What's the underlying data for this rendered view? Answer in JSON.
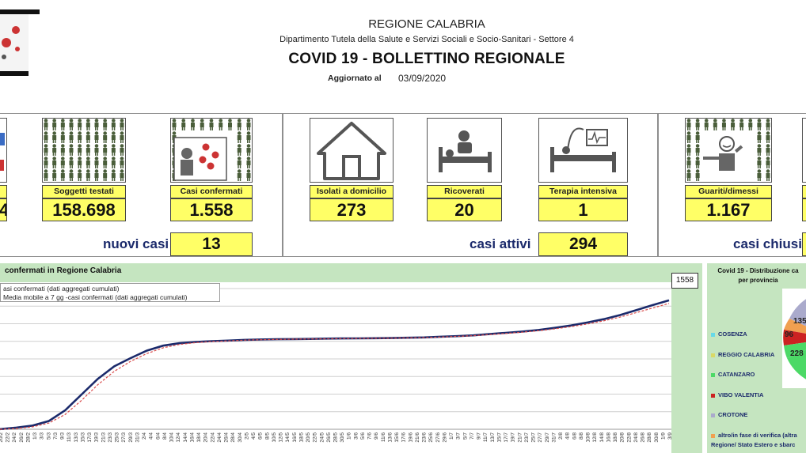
{
  "header": {
    "region": "REGIONE CALABRIA",
    "department": "Dipartimento Tutela della Salute e Servizi Sociali e Socio-Sanitari - Settore 4",
    "title": "COVID 19 - BOLLETTINO REGIONALE",
    "updated_label": "Aggiornato al",
    "updated_date": "03/09/2020"
  },
  "stats": {
    "partial_left_value": "4",
    "testati": {
      "label": "Soggetti testati",
      "value": "158.698"
    },
    "confermati": {
      "label": "Casi confermati",
      "value": "1.558"
    },
    "isolati": {
      "label": "Isolati a domicilio",
      "value": "273"
    },
    "ricoverati": {
      "label": "Ricoverati",
      "value": "20"
    },
    "terapia": {
      "label": "Terapia intensiva",
      "value": "1"
    },
    "guariti": {
      "label": "Guariti/dimessi",
      "value": "1.167"
    }
  },
  "summary": {
    "nuovi_label": "nuovi casi",
    "nuovi_value": "13",
    "attivi_label": "casi attivi",
    "attivi_value": "294",
    "chiusi_label": "casi chiusi"
  },
  "chart": {
    "title": "confermati in Regione Calabria",
    "legend": [
      "asi confermati (dati aggregati cumulati)",
      "Media mobile a 7 gg -casi confermati (dati aggregati cumulati)"
    ],
    "last_value": "1558"
  },
  "chart_data": {
    "type": "line",
    "title": "confermati in Regione Calabria",
    "series": [
      {
        "name": "asi confermati (dati aggregati cumulati)",
        "color": "#1b2a6b",
        "values": [
          2,
          20,
          45,
          100,
          230,
          420,
          610,
          760,
          860,
          950,
          1010,
          1040,
          1055,
          1065,
          1072,
          1080,
          1085,
          1088,
          1090,
          1092,
          1095,
          1097,
          1098,
          1100,
          1102,
          1106,
          1110,
          1118,
          1125,
          1135,
          1150,
          1165,
          1180,
          1200,
          1225,
          1255,
          1290,
          1330,
          1380,
          1440,
          1500,
          1558
        ]
      },
      {
        "name": "Media mobile a 7 gg -casi confermati (dati aggregati cumulati)",
        "color": "#d94a4a",
        "dashed": true,
        "values": [
          0,
          10,
          30,
          75,
          180,
          350,
          540,
          700,
          820,
          915,
          985,
          1025,
          1047,
          1060,
          1068,
          1077,
          1082,
          1086,
          1089,
          1091,
          1093,
          1095,
          1097,
          1099,
          1101,
          1104,
          1108,
          1115,
          1122,
          1131,
          1144,
          1158,
          1173,
          1190,
          1213,
          1240,
          1272,
          1310,
          1355,
          1410,
          1465,
          1520
        ]
      }
    ],
    "x_tick_labels": [
      "20/2",
      "22/2",
      "24/2",
      "26/2",
      "28/2",
      "1/3",
      "3/3",
      "5/3",
      "7/3",
      "9/3",
      "11/3",
      "13/3",
      "15/3",
      "17/3",
      "19/3",
      "21/3",
      "23/3",
      "25/3",
      "27/3",
      "29/3",
      "31/3",
      "2/4",
      "4/4",
      "6/4",
      "8/4",
      "10/4",
      "12/4",
      "14/4",
      "16/4",
      "18/4",
      "20/4",
      "22/4",
      "24/4",
      "26/4",
      "28/4",
      "30/4",
      "2/5",
      "4/5",
      "6/5",
      "8/5",
      "10/5",
      "12/5",
      "14/5",
      "16/5",
      "18/5",
      "20/5",
      "22/5",
      "24/5",
      "26/5",
      "28/5",
      "30/5",
      "1/6",
      "3/6",
      "5/6",
      "7/6",
      "9/6",
      "11/6",
      "13/6",
      "15/6",
      "17/6",
      "19/6",
      "21/6",
      "23/6",
      "25/6",
      "27/6",
      "29/6",
      "1/7",
      "3/7",
      "5/7",
      "7/7",
      "9/7",
      "11/7",
      "13/7",
      "15/7",
      "17/7",
      "19/7",
      "21/7",
      "23/7",
      "25/7",
      "27/7",
      "29/7",
      "31/7",
      "2/8",
      "4/8",
      "6/8",
      "8/8",
      "10/8",
      "12/8",
      "14/8",
      "16/8",
      "18/8",
      "20/8",
      "22/8",
      "24/8",
      "26/8",
      "28/8",
      "30/8",
      "1/9",
      "3/9"
    ],
    "ylim": [
      0,
      1700
    ],
    "grid": true
  },
  "pie": {
    "title_line1": "Covid 19 - Distribuzione ca",
    "title_line2": "per provincia",
    "provinces": [
      {
        "name": "COSENZA",
        "color": "#66d9e8"
      },
      {
        "name": "REGGIO CALABRIA",
        "color": "#d9d966"
      },
      {
        "name": "CATANZARO",
        "color": "#4cd966"
      },
      {
        "name": "VIBO VALENTIA",
        "color": "#cc2222"
      },
      {
        "name": "CROTONE",
        "color": "#aaaacc"
      },
      {
        "name": "altro/in fase di verifica (altra",
        "color": "#f0a050"
      }
    ],
    "extra_line": "Regione/ Stato Estero e sbarc",
    "slices": [
      {
        "label": "135",
        "color": "#aaaacc"
      },
      {
        "label": "96",
        "color": "#cc2222"
      },
      {
        "label": "228",
        "color": "#4cd966"
      }
    ]
  },
  "icons": [
    "virus-logo-icon",
    "people-grid-icon",
    "virus-person-icon",
    "house-icon",
    "hospital-bed-icon",
    "intensive-care-icon",
    "recovered-person-icon"
  ]
}
